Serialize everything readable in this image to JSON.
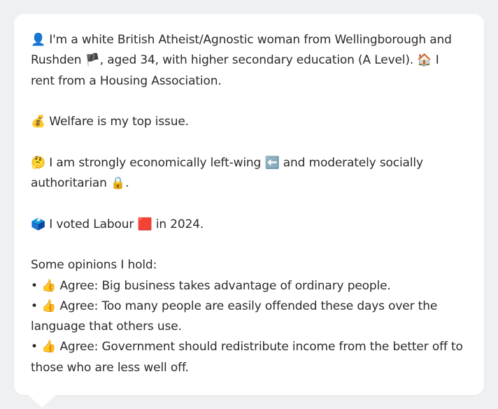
{
  "bio": {
    "identity": {
      "icon": "👤",
      "text_before_flag": "I'm a white British Atheist/Agnostic woman from Wellingborough and Rushden",
      "flag": "🏴",
      "text_after_flag": ", aged 34, with higher secondary education (A Level).",
      "house_icon": "🏠",
      "housing": "I rent from a Housing Association."
    },
    "top_issue": {
      "icon": "💰",
      "text": "Welfare is my top issue."
    },
    "ideology": {
      "icon": "🤔",
      "text_left": "I am strongly economically left-wing",
      "left_icon": "⬅️",
      "text_social": "and moderately socially authoritarian",
      "lock_icon": "🔒",
      "end": "."
    },
    "vote": {
      "icon": "🗳️",
      "text_before": "I voted Labour",
      "party_icon": "🟥",
      "text_after": "in 2024."
    },
    "opinions": {
      "heading": "Some opinions I hold:",
      "bullet": "•",
      "agree_icon": "👍",
      "items": [
        "Agree: Big business takes advantage of ordinary people.",
        "Agree: Too many people are easily offended these days over the language that others use.",
        "Agree: Government should redistribute income from the better off to those who are less well off."
      ]
    }
  }
}
